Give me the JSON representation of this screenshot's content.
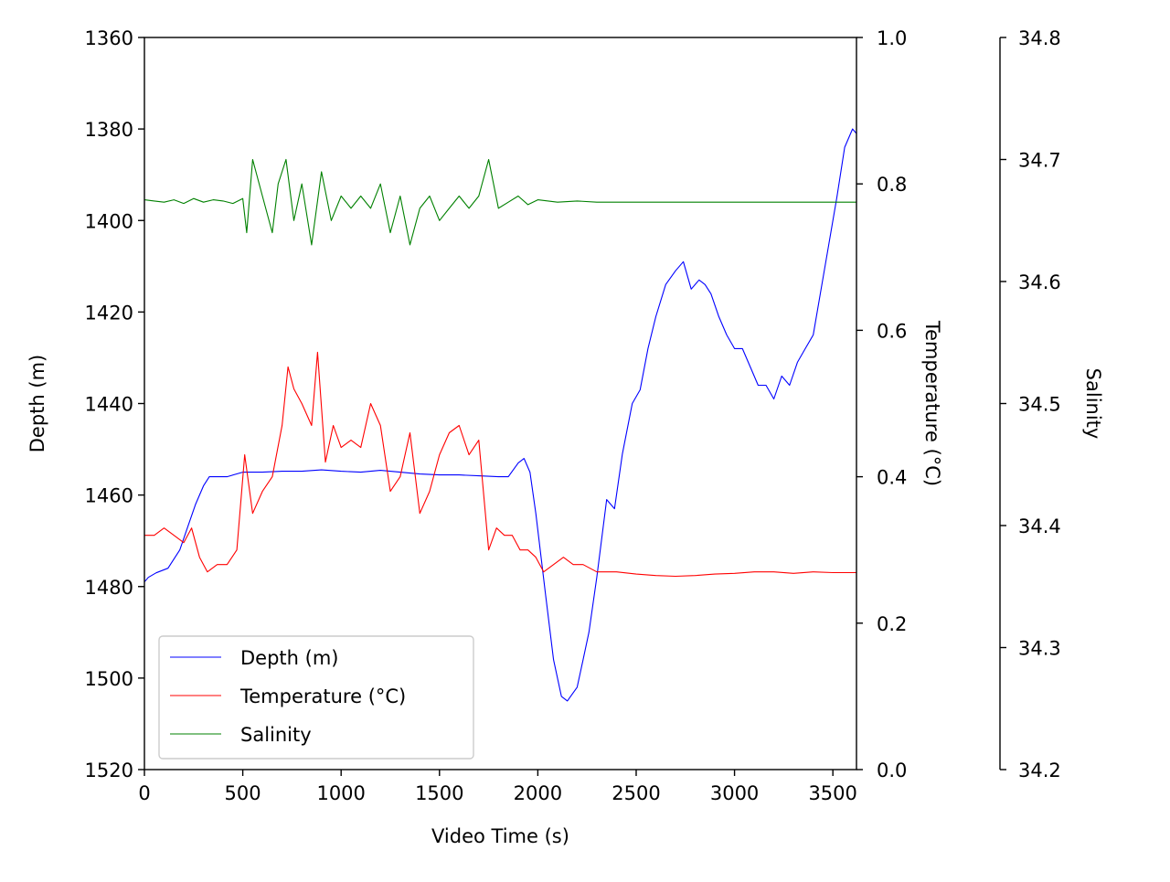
{
  "chart_data": {
    "type": "line",
    "title": "",
    "xlabel": "Video Time (s)",
    "xlim": [
      0,
      3620
    ],
    "xticks": [
      "0",
      "500",
      "1000",
      "1500",
      "2000",
      "2500",
      "3000",
      "3500"
    ],
    "axes": {
      "depth": {
        "label": "Depth (m)",
        "side": "left",
        "lim": [
          1520,
          1360
        ],
        "inverted": true,
        "ticks": [
          "1360",
          "1380",
          "1400",
          "1420",
          "1440",
          "1460",
          "1480",
          "1500",
          "1520"
        ]
      },
      "temperature": {
        "label": "Temperature (°C)",
        "side": "right",
        "lim": [
          0.0,
          1.0
        ],
        "ticks": [
          "0.0",
          "0.2",
          "0.4",
          "0.6",
          "0.8",
          "1.0"
        ]
      },
      "salinity": {
        "label": "Salinity",
        "side": "right-offset",
        "lim": [
          34.2,
          34.8
        ],
        "ticks": [
          "34.2",
          "34.3",
          "34.4",
          "34.5",
          "34.6",
          "34.7",
          "34.8"
        ]
      }
    },
    "legend": {
      "placement": "lower-left",
      "entries": [
        "Depth (m)",
        "Temperature (°C)",
        "Salinity"
      ]
    },
    "grid": false,
    "series": [
      {
        "name": "Depth (m)",
        "axis": "depth",
        "color": "#0000ff",
        "x": [
          0,
          20,
          60,
          120,
          180,
          220,
          260,
          300,
          330,
          360,
          420,
          500,
          600,
          700,
          800,
          900,
          1000,
          1100,
          1200,
          1300,
          1400,
          1500,
          1600,
          1700,
          1800,
          1850,
          1900,
          1930,
          1960,
          1990,
          2040,
          2080,
          2120,
          2150,
          2200,
          2230,
          2260,
          2300,
          2350,
          2390,
          2430,
          2480,
          2520,
          2560,
          2600,
          2650,
          2700,
          2740,
          2780,
          2820,
          2850,
          2880,
          2920,
          2960,
          3000,
          3040,
          3080,
          3120,
          3160,
          3200,
          3240,
          3280,
          3320,
          3360,
          3400,
          3440,
          3480,
          3520,
          3560,
          3600,
          3620
        ],
        "y": [
          1479,
          1478,
          1477,
          1476,
          1472,
          1467,
          1462,
          1458,
          1456,
          1456,
          1456,
          1455,
          1455,
          1454.8,
          1454.8,
          1454.5,
          1454.8,
          1455,
          1454.6,
          1455,
          1455.4,
          1455.6,
          1455.6,
          1455.8,
          1456,
          1456,
          1453,
          1452,
          1455,
          1464,
          1482,
          1496,
          1504,
          1505,
          1502,
          1496,
          1490,
          1478,
          1461,
          1463,
          1451,
          1440,
          1437,
          1428,
          1421,
          1414,
          1411,
          1409,
          1415,
          1413,
          1414,
          1416,
          1421,
          1425,
          1428,
          1428,
          1432,
          1436,
          1436,
          1439,
          1434,
          1436,
          1431,
          1428,
          1425,
          1415,
          1405,
          1395,
          1384,
          1380,
          1381
        ]
      },
      {
        "name": "Temperature (°C)",
        "axis": "temperature",
        "color": "#ff0000",
        "x": [
          0,
          50,
          100,
          150,
          200,
          240,
          280,
          320,
          370,
          420,
          470,
          510,
          550,
          600,
          650,
          700,
          730,
          760,
          800,
          850,
          880,
          920,
          960,
          1000,
          1050,
          1100,
          1150,
          1200,
          1250,
          1300,
          1350,
          1400,
          1450,
          1500,
          1550,
          1600,
          1650,
          1700,
          1750,
          1790,
          1830,
          1870,
          1910,
          1950,
          1990,
          2030,
          2080,
          2130,
          2180,
          2230,
          2300,
          2400,
          2500,
          2600,
          2700,
          2800,
          2900,
          3000,
          3100,
          3200,
          3300,
          3400,
          3500,
          3620
        ],
        "y": [
          0.32,
          0.32,
          0.33,
          0.32,
          0.31,
          0.33,
          0.29,
          0.27,
          0.28,
          0.28,
          0.3,
          0.43,
          0.35,
          0.38,
          0.4,
          0.47,
          0.55,
          0.52,
          0.5,
          0.47,
          0.57,
          0.42,
          0.47,
          0.44,
          0.45,
          0.44,
          0.5,
          0.47,
          0.38,
          0.4,
          0.46,
          0.35,
          0.38,
          0.43,
          0.46,
          0.47,
          0.43,
          0.45,
          0.3,
          0.33,
          0.32,
          0.32,
          0.3,
          0.3,
          0.29,
          0.27,
          0.28,
          0.29,
          0.28,
          0.28,
          0.27,
          0.27,
          0.267,
          0.265,
          0.264,
          0.265,
          0.267,
          0.268,
          0.27,
          0.27,
          0.268,
          0.27,
          0.269,
          0.269
        ]
      },
      {
        "name": "Salinity",
        "axis": "salinity",
        "color": "#008000",
        "x": [
          0,
          50,
          100,
          150,
          200,
          250,
          300,
          350,
          400,
          450,
          500,
          520,
          550,
          600,
          650,
          680,
          720,
          760,
          800,
          850,
          900,
          950,
          1000,
          1050,
          1100,
          1150,
          1200,
          1250,
          1300,
          1350,
          1400,
          1450,
          1500,
          1550,
          1600,
          1650,
          1700,
          1750,
          1800,
          1850,
          1900,
          1950,
          2000,
          2100,
          2200,
          2300,
          2400,
          2600,
          2800,
          3000,
          3200,
          3400,
          3620
        ],
        "y": [
          34.667,
          34.666,
          34.665,
          34.667,
          34.664,
          34.668,
          34.665,
          34.667,
          34.666,
          34.664,
          34.668,
          34.64,
          34.7,
          34.67,
          34.64,
          34.68,
          34.7,
          34.65,
          34.68,
          34.63,
          34.69,
          34.65,
          34.67,
          34.66,
          34.67,
          34.66,
          34.68,
          34.64,
          34.67,
          34.63,
          34.66,
          34.67,
          34.65,
          34.66,
          34.67,
          34.66,
          34.67,
          34.7,
          34.66,
          34.665,
          34.67,
          34.663,
          34.667,
          34.665,
          34.666,
          34.665,
          34.665,
          34.665,
          34.665,
          34.665,
          34.665,
          34.665,
          34.665
        ]
      }
    ]
  }
}
